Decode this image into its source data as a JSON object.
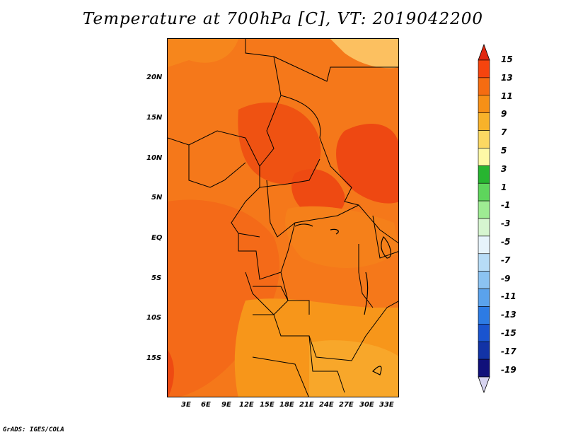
{
  "title": "Temperature at 700hPa [C], VT: 2019042200",
  "credit": "GrADS: IGES/COLA",
  "map": {
    "type": "heatmap",
    "variable": "Temperature at 700hPa",
    "units": "C",
    "valid_time": "2019042200",
    "lon_ticks": [
      "3E",
      "6E",
      "9E",
      "12E",
      "15E",
      "18E",
      "21E",
      "24E",
      "27E",
      "30E",
      "33E"
    ],
    "lat_ticks": [
      "20N",
      "15N",
      "10N",
      "5N",
      "EQ",
      "5S",
      "10S",
      "15S"
    ]
  },
  "colorbar": {
    "labels": [
      "15",
      "13",
      "11",
      "9",
      "7",
      "5",
      "3",
      "1",
      "-1",
      "-3",
      "-5",
      "-7",
      "-9",
      "-11",
      "-13",
      "-15",
      "-17",
      "-19"
    ],
    "colors": [
      "#e8230f",
      "#f5440e",
      "#f56c11",
      "#f79016",
      "#f8b22a",
      "#fcd862",
      "#fef8a6",
      "#27b530",
      "#5ed55c",
      "#9eec93",
      "#d6f5d0",
      "#e6f3fb",
      "#b7dcf7",
      "#8bc3f2",
      "#5aa2ec",
      "#2d7be4",
      "#1a54cf",
      "#1233a6",
      "#10107a"
    ],
    "end_top_color": "#e02810",
    "end_bottom_color": "#d7d4f0"
  }
}
